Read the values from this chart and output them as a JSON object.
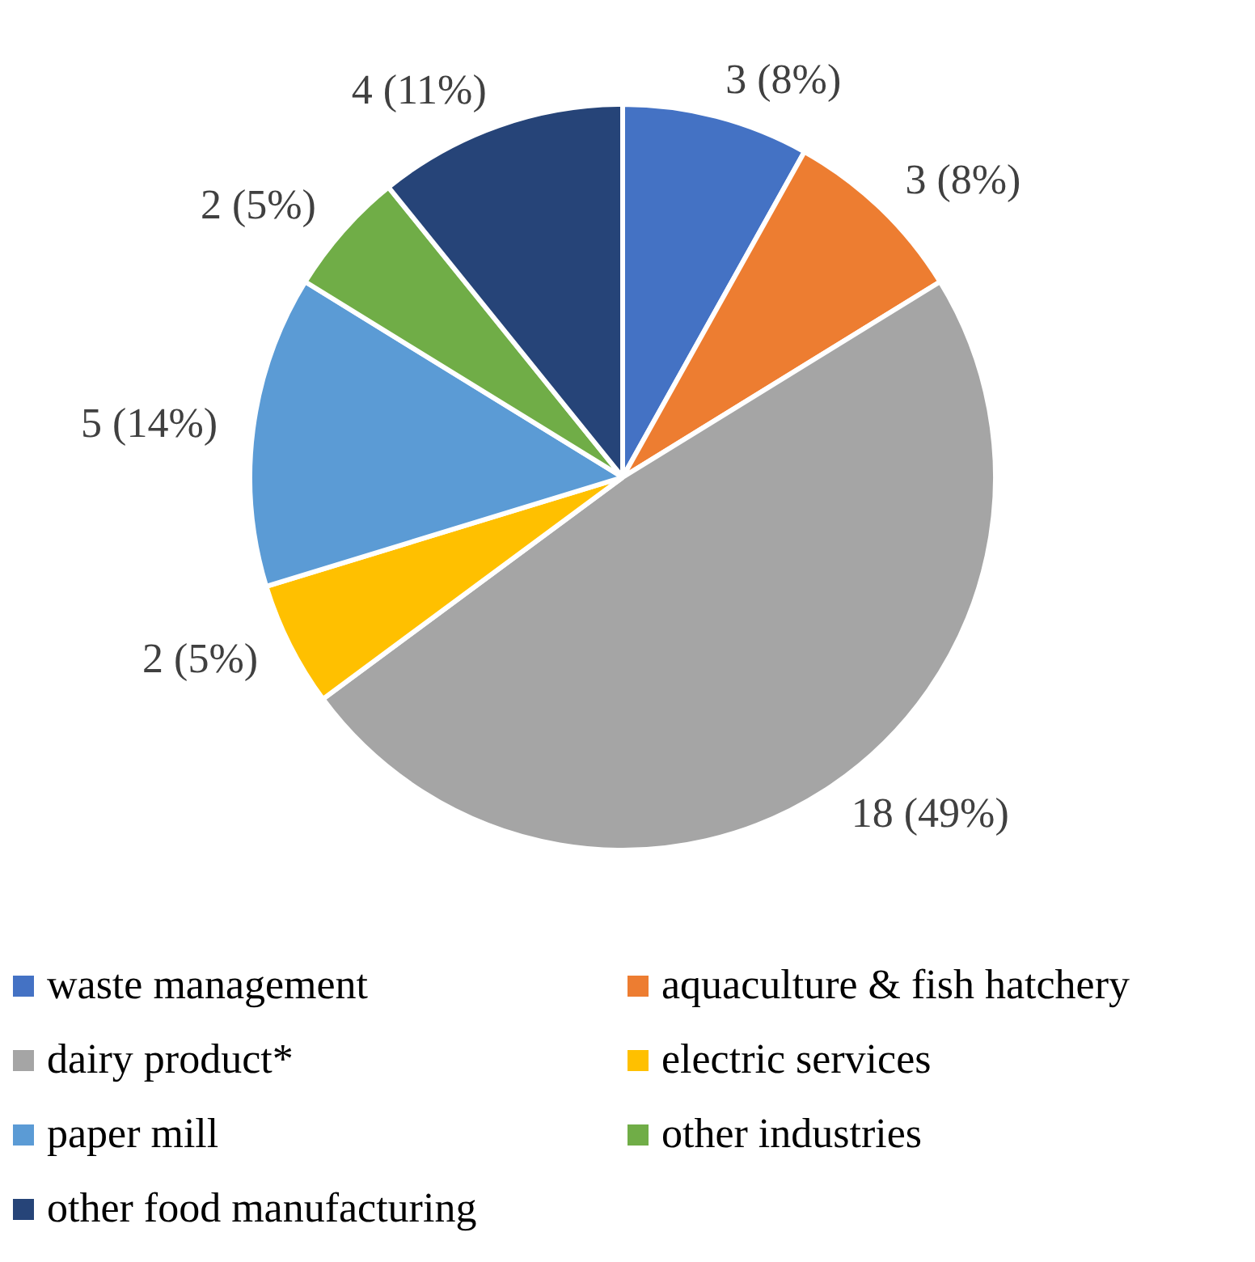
{
  "chart_data": {
    "type": "pie",
    "categories": [
      "waste management",
      "aquaculture & fish hatchery",
      "dairy product*",
      "electric services",
      "paper mill",
      "other industries",
      "other food manufacturing"
    ],
    "values": [
      3,
      3,
      18,
      2,
      5,
      2,
      4
    ],
    "colors": [
      "#4472c4",
      "#ed7d31",
      "#a5a5a5",
      "#ffc000",
      "#5b9bd5",
      "#70ad47",
      "#264478"
    ],
    "value_labels": [
      "3 (8%)",
      "3 (8%)",
      "18 (49%)",
      "2 (5%)",
      "5 (14%)",
      "2 (5%)",
      "4 (11%)"
    ],
    "legend": "bottom"
  }
}
